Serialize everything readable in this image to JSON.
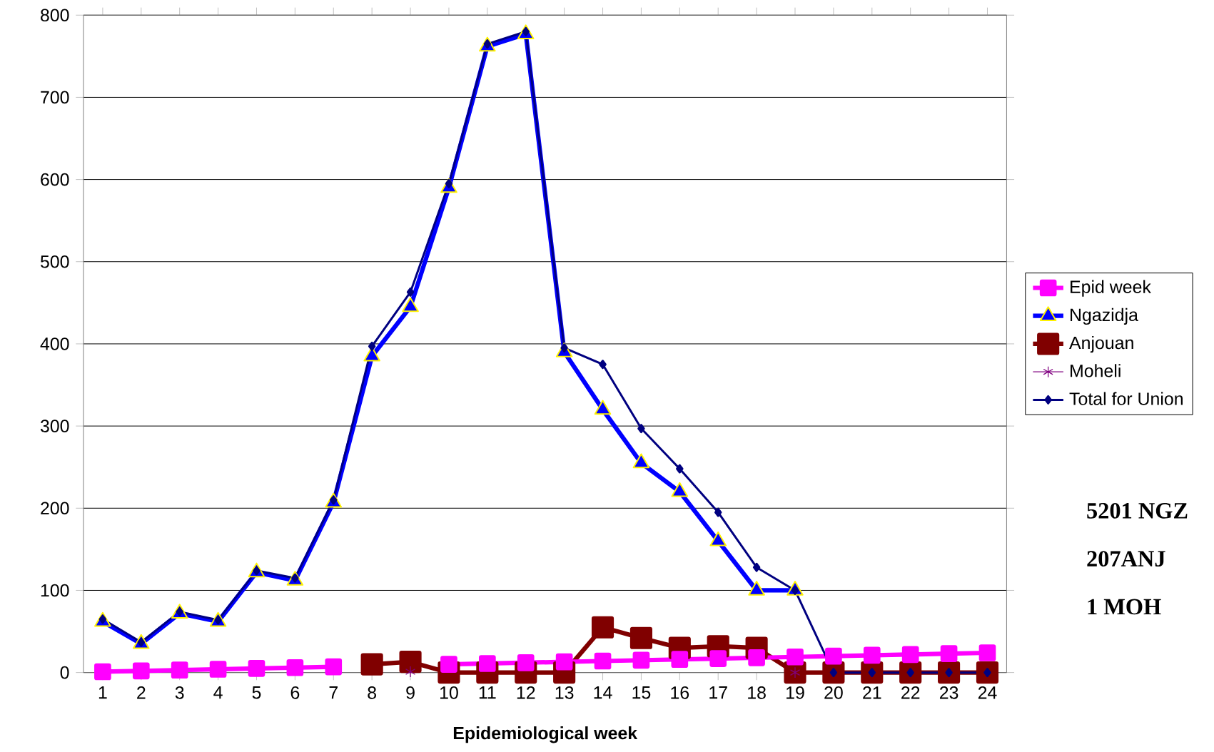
{
  "chart_data": {
    "type": "line",
    "xlabel": "Epidemiological week",
    "categories": [
      "1",
      "2",
      "3",
      "4",
      "5",
      "6",
      "7",
      "8",
      "9",
      "10",
      "11",
      "12",
      "13",
      "14",
      "15",
      "16",
      "17",
      "18",
      "19",
      "20",
      "21",
      "22",
      "23",
      "24"
    ],
    "series": [
      {
        "name": "Epid week",
        "color": "#ff00ff",
        "marker": "square",
        "values": [
          1,
          2,
          3,
          4,
          5,
          6,
          7,
          null,
          null,
          10,
          11,
          12,
          13,
          14,
          15,
          16,
          17,
          18,
          19,
          20,
          21,
          22,
          23,
          24
        ]
      },
      {
        "name": "Ngazidja",
        "color": "#0000ff",
        "marker": "triangle",
        "values": [
          62,
          35,
          72,
          62,
          122,
          112,
          207,
          385,
          445,
          590,
          762,
          777,
          390,
          320,
          255,
          220,
          160,
          100,
          100,
          null,
          null,
          null,
          null,
          null
        ]
      },
      {
        "name": "Anjouan",
        "color": "#800000",
        "marker": "square",
        "values": [
          null,
          null,
          null,
          null,
          null,
          null,
          null,
          10,
          13,
          0,
          0,
          0,
          0,
          55,
          42,
          30,
          32,
          30,
          0,
          0,
          0,
          0,
          0,
          0
        ]
      },
      {
        "name": "Moheli",
        "color": "#800080",
        "marker": "cross",
        "values": [
          null,
          null,
          null,
          null,
          null,
          null,
          null,
          null,
          1,
          null,
          null,
          null,
          null,
          null,
          null,
          null,
          null,
          null,
          0,
          null,
          null,
          null,
          null,
          null
        ]
      },
      {
        "name": "Total for Union",
        "color": "#000080",
        "marker": "diamond",
        "values": [
          65,
          37,
          74,
          64,
          124,
          115,
          210,
          397,
          463,
          595,
          765,
          780,
          395,
          375,
          297,
          248,
          195,
          128,
          100,
          0,
          0,
          0,
          0,
          0
        ]
      }
    ],
    "ylim": [
      0,
      800
    ],
    "yticks": [
      0,
      100,
      200,
      300,
      400,
      500,
      600,
      700,
      800
    ],
    "grid": "y",
    "legend": "right",
    "annotations": [
      "5201 NGZ",
      "207ANJ",
      "1 MOH"
    ]
  }
}
